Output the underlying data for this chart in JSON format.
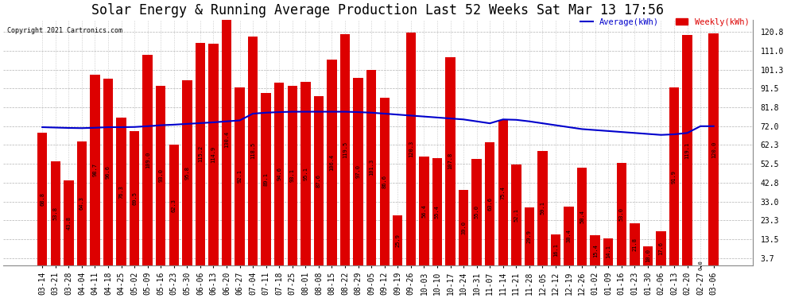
{
  "title": "Solar Energy & Running Average Production Last 52 Weeks Sat Mar 13 17:56",
  "copyright": "Copyright 2021 Cartronics.com",
  "legend_avg": "Average(kWh)",
  "legend_weekly": "Weekly(kWh)",
  "bar_color": "#DD0000",
  "avg_line_color": "#0000CC",
  "background_color": "#FFFFFF",
  "grid_color": "#AAAAAA",
  "categories": [
    "03-14",
    "03-21",
    "03-28",
    "04-04",
    "04-11",
    "04-18",
    "04-25",
    "05-02",
    "05-09",
    "05-16",
    "05-23",
    "05-30",
    "06-06",
    "06-13",
    "06-20",
    "06-27",
    "07-04",
    "07-11",
    "07-18",
    "07-25",
    "08-01",
    "08-08",
    "08-15",
    "08-22",
    "08-29",
    "09-05",
    "09-12",
    "09-19",
    "09-26",
    "10-03",
    "10-10",
    "10-17",
    "10-24",
    "10-31",
    "11-07",
    "11-14",
    "11-21",
    "11-28",
    "12-05",
    "12-12",
    "12-19",
    "12-26",
    "01-02",
    "01-09",
    "01-16",
    "01-23",
    "01-30",
    "02-06",
    "02-13",
    "02-20",
    "02-27",
    "03-06"
  ],
  "weekly_values": [
    68.8,
    53.8,
    43.8,
    64.3,
    98.7,
    96.6,
    76.3,
    69.5,
    109.0,
    93.0,
    62.3,
    95.8,
    115.2,
    114.9,
    130.4,
    92.1,
    118.5,
    89.1,
    94.6,
    93.1,
    95.1,
    87.6,
    106.4,
    119.5,
    97.0,
    101.3,
    86.6,
    25.9,
    120.3,
    56.4,
    55.4,
    107.8,
    39.0,
    55.0,
    63.6,
    75.4,
    52.1,
    29.9,
    59.1,
    16.1,
    30.4,
    50.4,
    15.4,
    14.1,
    53.0,
    21.8,
    10.0,
    17.6,
    91.9,
    119.1,
    0.0,
    120.0
  ],
  "avg_values": [
    71.5,
    71.3,
    71.1,
    71.0,
    71.2,
    71.5,
    71.5,
    71.6,
    72.0,
    72.5,
    72.8,
    73.2,
    73.6,
    74.0,
    74.5,
    75.0,
    78.5,
    79.0,
    79.3,
    79.5,
    79.5,
    79.5,
    79.5,
    79.5,
    79.3,
    79.0,
    78.5,
    78.0,
    77.5,
    77.0,
    76.5,
    76.0,
    75.5,
    74.5,
    73.5,
    75.5,
    75.3,
    74.5,
    73.5,
    72.5,
    71.5,
    70.5,
    70.0,
    69.5,
    69.0,
    68.5,
    68.0,
    67.5,
    67.8,
    68.5,
    72.0,
    72.0
  ],
  "yticks": [
    3.7,
    13.5,
    23.3,
    33.0,
    42.8,
    52.5,
    62.3,
    72.0,
    81.8,
    91.5,
    101.3,
    111.0,
    120.8
  ],
  "ylim": [
    0,
    127
  ],
  "title_fontsize": 12,
  "tick_fontsize": 7.0,
  "bar_width": 0.75
}
